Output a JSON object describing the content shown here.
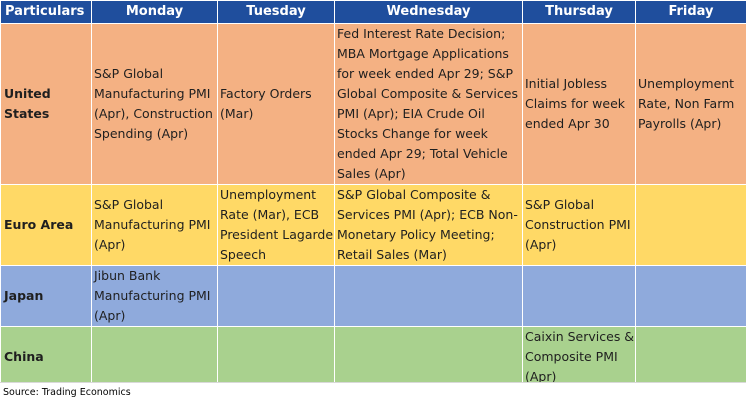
{
  "headers": [
    "Particulars",
    "Monday",
    "Tuesday",
    "Wednesday",
    "Thursday",
    "Friday"
  ],
  "rows": [
    {
      "region": "United States",
      "cells": [
        "S&P Global Manufacturing PMI (Apr), Construction Spending (Apr)",
        "Factory Orders (Mar)",
        "Fed Interest Rate Decision; MBA Mortgage Applications for week ended Apr 29; S&P Global Composite & Services PMI (Apr); EIA Crude Oil Stocks Change for week ended Apr 29; Total Vehicle Sales (Apr)",
        "Initial Jobless Claims for week ended Apr 30",
        "Unemployment Rate, Non Farm Payrolls (Apr)"
      ]
    },
    {
      "region": "Euro Area",
      "cells": [
        "S&P Global Manufacturing PMI (Apr)",
        "Unemployment Rate (Mar), ECB President Lagarde Speech",
        "S&P Global Composite & Services PMI (Apr); ECB Non-Monetary Policy Meeting; Retail Sales (Mar)",
        "S&P Global Construction PMI (Apr)",
        ""
      ]
    },
    {
      "region": "Japan",
      "cells": [
        "Jibun Bank Manufacturing PMI (Apr)",
        "",
        "",
        "",
        ""
      ]
    },
    {
      "region": "China",
      "cells": [
        "",
        "",
        "",
        "Caixin Services & Composite PMI (Apr)",
        ""
      ]
    }
  ],
  "source": "Source: Trading Economics",
  "colors": {
    "header": "#1f4e9d",
    "united_states": "#f4b183",
    "euro_area": "#ffd966",
    "japan": "#8faadc",
    "china": "#a9d18e"
  }
}
